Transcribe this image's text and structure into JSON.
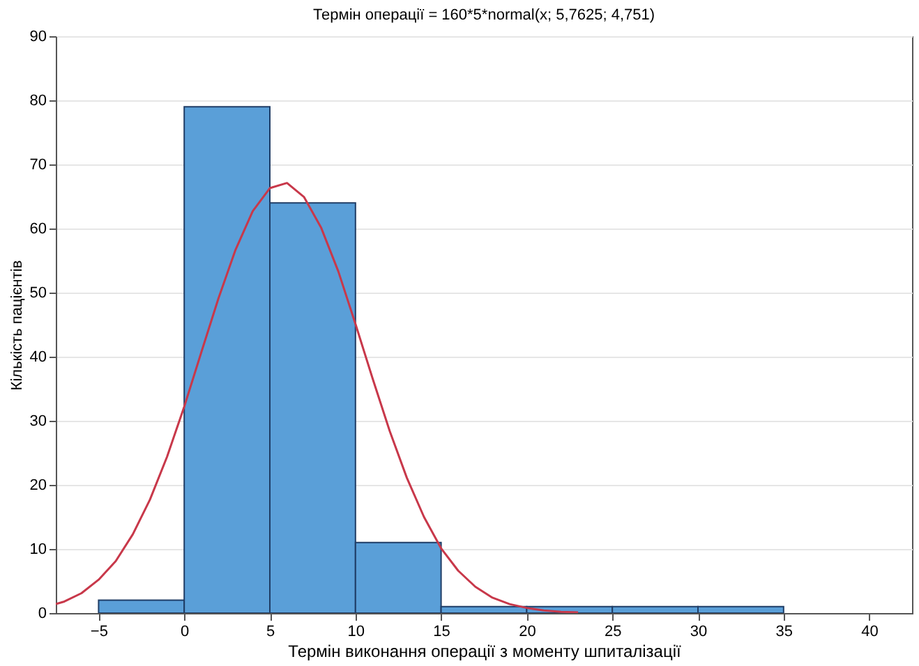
{
  "chart_data": {
    "type": "histogram",
    "title": "Термін операції = 160*5*normal(x; 5,7625; 4,751)",
    "xlabel": "Термін виконання операції з моменту шпиталізації",
    "ylabel": "Кількість пацієнтів",
    "xlim": [
      -7.5,
      42.5
    ],
    "xticks": [
      -5,
      0,
      5,
      10,
      15,
      20,
      25,
      30,
      35,
      40
    ],
    "ylim": [
      0,
      90
    ],
    "yticks": [
      0,
      10,
      20,
      30,
      40,
      50,
      60,
      70,
      80,
      90
    ],
    "grid": "y",
    "series": [
      {
        "color": "#5a9fd8",
        "bins": [
          -5,
          0,
          5,
          10,
          15,
          20,
          25,
          30,
          35
        ],
        "values": [
          2,
          79,
          64,
          11,
          1,
          1,
          1,
          1
        ]
      },
      {
        "type": "line",
        "color": "#c8384a",
        "x": [
          -7.5,
          -7,
          -6,
          -5,
          -4,
          -3,
          -2,
          -1,
          0,
          1,
          2,
          3,
          4,
          5,
          6,
          7,
          8,
          9,
          10,
          11,
          12,
          13,
          14,
          15,
          16,
          17,
          18,
          19,
          20,
          21,
          22,
          23
        ],
        "values": [
          1.4,
          1.8,
          3.1,
          5.2,
          8.1,
          12.3,
          17.7,
          24.4,
          32.2,
          40.7,
          49.1,
          56.7,
          62.7,
          66.3,
          67.1,
          64.9,
          60.1,
          53.3,
          45.1,
          36.6,
          28.4,
          21.1,
          15.0,
          10.1,
          6.6,
          4.1,
          2.4,
          1.4,
          0.8,
          0.4,
          0.2,
          0.1
        ]
      }
    ]
  }
}
